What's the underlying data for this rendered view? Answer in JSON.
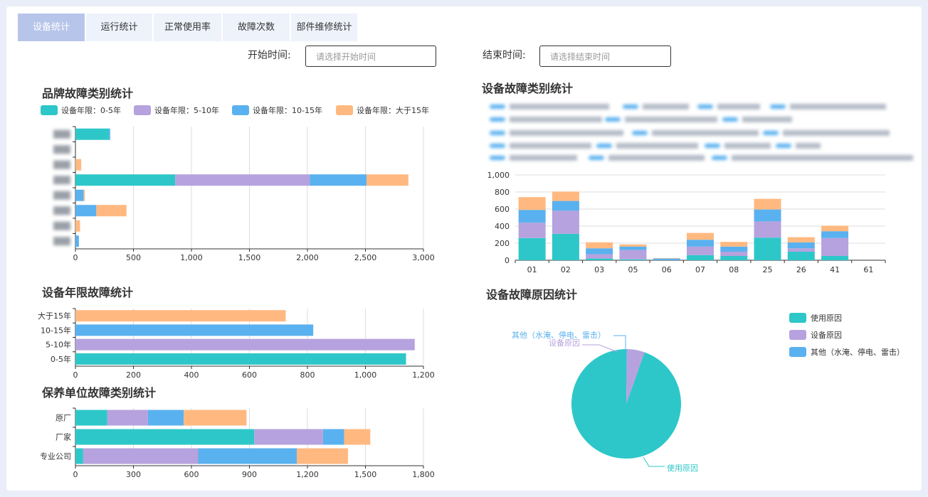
{
  "tabs": [
    {
      "label": "设备统计",
      "active": true
    },
    {
      "label": "运行统计"
    },
    {
      "label": "正常使用率"
    },
    {
      "label": "故障次数"
    },
    {
      "label": "部件维修统计"
    }
  ],
  "filters": {
    "start_label": "开始时间:",
    "start_placeholder": "请选择开始时间",
    "end_label": "结束时间:",
    "end_placeholder": "请选择结束时间"
  },
  "colors": {
    "teal": "#2ec7c9",
    "purple": "#b6a2de",
    "blue": "#5ab1ef",
    "orange": "#ffb980"
  },
  "chart_data": [
    {
      "type": "bar",
      "orientation": "horizontal",
      "stacked": true,
      "title": "品牌故障类别统计",
      "legend": [
        "设备年限：0-5年",
        "设备年限：5-10年",
        "设备年限：10-15年",
        "设备年限：大于15年"
      ],
      "categories": [
        "cat1",
        "cat2",
        "cat3",
        "cat4",
        "cat5",
        "cat6",
        "cat7",
        "cat8"
      ],
      "series": [
        {
          "name": "设备年限：0-5年",
          "values": [
            290,
            0,
            0,
            860,
            0,
            0,
            0,
            0
          ]
        },
        {
          "name": "设备年限：5-10年",
          "values": [
            0,
            0,
            0,
            1160,
            0,
            0,
            0,
            0
          ]
        },
        {
          "name": "设备年限：10-15年",
          "values": [
            10,
            0,
            0,
            490,
            70,
            180,
            0,
            30
          ]
        },
        {
          "name": "设备年限：大于15年",
          "values": [
            0,
            0,
            50,
            360,
            10,
            260,
            40,
            0
          ]
        }
      ],
      "xlim": [
        0,
        3000
      ],
      "xticks": [
        "0",
        "500",
        "1,000",
        "1,500",
        "2,000",
        "2,500",
        "3,000"
      ]
    },
    {
      "type": "bar",
      "stacked": true,
      "title": "设备故障类别统计",
      "categories": [
        "01",
        "02",
        "03",
        "05",
        "06",
        "07",
        "08",
        "25",
        "26",
        "41",
        "61"
      ],
      "series": [
        {
          "values": [
            260,
            310,
            20,
            10,
            0,
            60,
            50,
            265,
            100,
            50,
            0
          ]
        },
        {
          "values": [
            180,
            270,
            50,
            110,
            0,
            100,
            50,
            190,
            40,
            210,
            0
          ]
        },
        {
          "values": [
            150,
            115,
            70,
            40,
            20,
            80,
            60,
            140,
            70,
            80,
            0
          ]
        },
        {
          "values": [
            150,
            110,
            70,
            25,
            5,
            80,
            55,
            125,
            60,
            65,
            0
          ]
        }
      ],
      "ylim": [
        0,
        1000
      ],
      "yticks": [
        "0",
        "200",
        "400",
        "600",
        "800",
        "1,000"
      ]
    },
    {
      "type": "bar",
      "orientation": "horizontal",
      "title": "设备年限故障统计",
      "categories": [
        "大于15年",
        "10-15年",
        "5-10年",
        "0-5年"
      ],
      "values": [
        725,
        820,
        1170,
        1140
      ],
      "xlim": [
        0,
        1200
      ],
      "xticks": [
        "0",
        "200",
        "400",
        "600",
        "800",
        "1,000",
        "1,200"
      ]
    },
    {
      "type": "bar",
      "orientation": "horizontal",
      "stacked": true,
      "title": "保养单位故障类别统计",
      "categories": [
        "原厂",
        "厂家",
        "专业公司"
      ],
      "series": [
        {
          "values": [
            165,
            925,
            40
          ]
        },
        {
          "values": [
            210,
            355,
            595
          ]
        },
        {
          "values": [
            185,
            110,
            510
          ]
        },
        {
          "values": [
            325,
            135,
            265
          ]
        }
      ],
      "xlim": [
        0,
        1800
      ],
      "xticks": [
        "0",
        "300",
        "600",
        "900",
        "1,200",
        "1,500",
        "1,800"
      ]
    },
    {
      "type": "pie",
      "title": "设备故障原因统计",
      "legend": [
        "使用原因",
        "设备原因",
        "其他（水淹、停电、雷击）"
      ],
      "slices": [
        {
          "name": "使用原因",
          "value": 94.6
        },
        {
          "name": "设备原因",
          "value": 5.2
        },
        {
          "name": "其他（水淹、停电、雷击）",
          "value": 0.2
        }
      ]
    }
  ]
}
